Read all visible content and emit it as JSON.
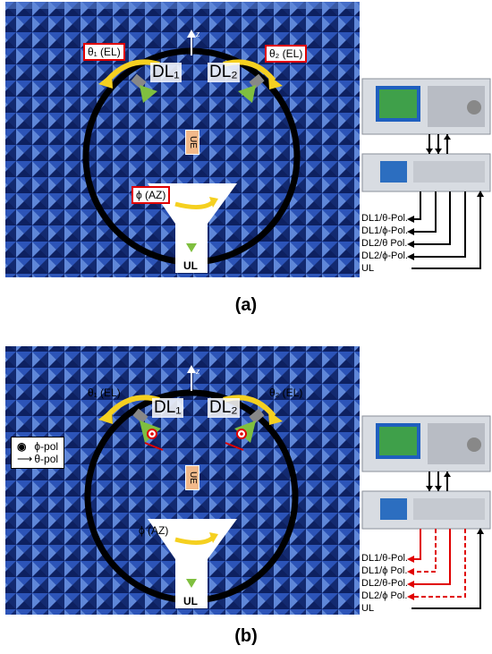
{
  "panel_a": {
    "caption": "(a)",
    "theta1": "θ₁ (EL)",
    "theta2": "θ₂ (EL)",
    "dl1": "DL₁",
    "dl2": "DL₂",
    "z": "z",
    "ue": "UE",
    "phi": "ϕ (AZ)",
    "ul": "UL",
    "ports": [
      "DL1/θ-Pol.",
      "DL1/ϕ-Pol.",
      "DL2/θ Pol.",
      "DL2/ϕ-Pol.",
      "UL"
    ]
  },
  "panel_b": {
    "caption": "(b)",
    "theta1": "θ₁ (EL)",
    "theta2": "θ₂ (EL)",
    "dl1": "DL₁",
    "dl2": "DL₂",
    "z": "z",
    "ue": "UE",
    "phi": "ϕ (AZ)",
    "ul": "UL",
    "legend_phi": "ϕ-pol",
    "legend_theta": "θ-pol",
    "ports": [
      "DL1/θ-Pol.",
      "DL1/ϕ Pol.",
      "DL2/θ-Pol.",
      "DL2/ϕ Pol.",
      "UL"
    ]
  },
  "colors": {
    "chamber": "#1f3f9a",
    "yellow_arrow": "#f5d020",
    "red_box": "#e00000",
    "antenna": "#7fbf3f",
    "red_cable": "#e00000"
  }
}
